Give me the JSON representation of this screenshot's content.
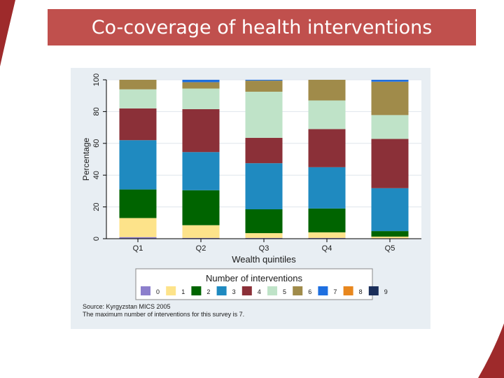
{
  "slide": {
    "title": "Co-coverage of health interventions",
    "accent_color": "#c0504d"
  },
  "chart_data": {
    "type": "bar",
    "stacked": true,
    "categories": [
      "Q1",
      "Q2",
      "Q3",
      "Q4",
      "Q5"
    ],
    "xlabel": "Wealth quintiles",
    "ylabel": "Percentage",
    "ylim": [
      0,
      100
    ],
    "yticks": [
      "0",
      "20",
      "40",
      "60",
      "80",
      "100"
    ],
    "grid": true,
    "legend": {
      "title": "Number of interventions",
      "placement": "bottom"
    },
    "series": [
      {
        "name": "0",
        "color": "#8c7fcc",
        "values": [
          1,
          0.5,
          0.5,
          0.5,
          0.3
        ]
      },
      {
        "name": "1",
        "color": "#fde38a",
        "values": [
          12,
          8,
          3,
          3.5,
          1
        ]
      },
      {
        "name": "2",
        "color": "#006400",
        "values": [
          18,
          22,
          15,
          15,
          3.5
        ]
      },
      {
        "name": "3",
        "color": "#1f8ac0",
        "values": [
          31,
          24,
          29,
          26,
          27
        ]
      },
      {
        "name": "4",
        "color": "#8b3038",
        "values": [
          20,
          27,
          16,
          24,
          31
        ]
      },
      {
        "name": "5",
        "color": "#bfe3c8",
        "values": [
          12,
          13,
          29,
          18,
          15
        ]
      },
      {
        "name": "6",
        "color": "#a08b4a",
        "values": [
          6,
          4,
          7,
          13,
          21
        ]
      },
      {
        "name": "7",
        "color": "#1e6fe0",
        "values": [
          0,
          1.5,
          0.5,
          0,
          1.2
        ]
      },
      {
        "name": "8",
        "color": "#e8871e",
        "values": [
          0,
          0,
          0,
          0,
          0
        ]
      },
      {
        "name": "9",
        "color": "#1a2e5a",
        "values": [
          0,
          0,
          0,
          0,
          0
        ]
      }
    ],
    "notes": [
      "Source: Kyrgyzstan MICS 2005",
      "The maximum number of interventions for this survey is 7."
    ]
  }
}
